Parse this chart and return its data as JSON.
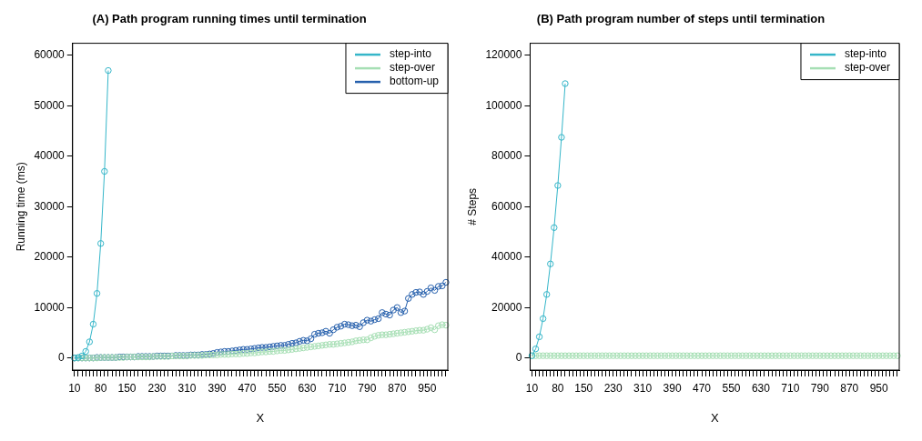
{
  "chart_data": [
    {
      "type": "line",
      "title": "(A) Path program running times until termination",
      "xlabel": "X",
      "ylabel": "Running time (ms)",
      "categories": [
        "10",
        null,
        null,
        null,
        null,
        null,
        null,
        "80",
        null,
        null,
        null,
        null,
        null,
        null,
        "150",
        null,
        null,
        null,
        null,
        null,
        null,
        null,
        "230",
        null,
        null,
        null,
        null,
        null,
        null,
        null,
        "310",
        null,
        null,
        null,
        null,
        null,
        null,
        null,
        "390",
        null,
        null,
        null,
        null,
        null,
        null,
        null,
        "470",
        null,
        null,
        null,
        null,
        null,
        null,
        null,
        "550",
        null,
        null,
        null,
        null,
        null,
        null,
        null,
        "630",
        null,
        null,
        null,
        null,
        null,
        null,
        null,
        "710",
        null,
        null,
        null,
        null,
        null,
        null,
        null,
        "790",
        null,
        null,
        null,
        null,
        null,
        null,
        null,
        "870",
        null,
        null,
        null,
        null,
        null,
        null,
        null,
        "950",
        null,
        null,
        null,
        null,
        null
      ],
      "ylim": [
        -2400,
        62400
      ],
      "yticks": [
        0,
        10000,
        20000,
        30000,
        40000,
        50000,
        60000
      ],
      "legend": "top right",
      "marker": "circle",
      "line_style": "solid",
      "series": [
        {
          "name": "step-into",
          "color": "#35b6c9",
          "values": [
            0,
            100,
            400,
            1300,
            3200,
            6700,
            12800,
            22700,
            37000,
            57000,
            null,
            null,
            null,
            null,
            null,
            null,
            null,
            null,
            null,
            null,
            null,
            null,
            null,
            null,
            null,
            null,
            null,
            null,
            null,
            null,
            null,
            null,
            null,
            null,
            null,
            null,
            null,
            null,
            null,
            null,
            null,
            null,
            null,
            null,
            null,
            null,
            null,
            null,
            null,
            null,
            null,
            null,
            null,
            null,
            null,
            null,
            null,
            null,
            null,
            null,
            null,
            null,
            null,
            null,
            null,
            null,
            null,
            null,
            null,
            null,
            null,
            null,
            null,
            null,
            null,
            null,
            null,
            null,
            null,
            null,
            null,
            null,
            null,
            null,
            null,
            null,
            null,
            null,
            null,
            null,
            null,
            null,
            null,
            null,
            null,
            null,
            null,
            null,
            null,
            null
          ]
        },
        {
          "name": "step-over",
          "color": "#a6dfb4",
          "values": [
            0,
            0,
            0,
            0,
            0,
            0,
            0,
            100,
            100,
            100,
            100,
            100,
            100,
            100,
            200,
            200,
            200,
            200,
            200,
            200,
            200,
            300,
            300,
            300,
            300,
            300,
            400,
            400,
            400,
            400,
            400,
            500,
            500,
            500,
            500,
            600,
            600,
            600,
            600,
            700,
            700,
            700,
            800,
            800,
            800,
            900,
            900,
            1000,
            1000,
            1100,
            1200,
            1200,
            1300,
            1300,
            1400,
            1500,
            1500,
            1600,
            1700,
            1800,
            1900,
            2000,
            2100,
            2200,
            2300,
            2400,
            2500,
            2600,
            2700,
            2700,
            2800,
            2900,
            3000,
            3100,
            3200,
            3400,
            3500,
            3600,
            3600,
            4000,
            4300,
            4500,
            4600,
            4600,
            4700,
            4800,
            4900,
            5000,
            5100,
            5200,
            5300,
            5400,
            5500,
            5500,
            5700,
            6000,
            5600,
            6400,
            6600,
            6500
          ]
        },
        {
          "name": "bottom-up",
          "color": "#2660ad",
          "values": [
            0,
            0,
            0,
            0,
            0,
            0,
            100,
            100,
            100,
            100,
            100,
            100,
            200,
            200,
            200,
            200,
            200,
            300,
            300,
            300,
            300,
            300,
            400,
            400,
            400,
            400,
            400,
            500,
            500,
            500,
            500,
            600,
            600,
            600,
            700,
            700,
            800,
            900,
            1100,
            1200,
            1300,
            1300,
            1400,
            1500,
            1600,
            1700,
            1700,
            1800,
            1900,
            2000,
            2100,
            2100,
            2200,
            2300,
            2400,
            2500,
            2500,
            2700,
            2900,
            3000,
            3300,
            3500,
            3400,
            3800,
            4700,
            4900,
            5000,
            5300,
            4900,
            5600,
            6100,
            6300,
            6700,
            6600,
            6400,
            6500,
            6200,
            7000,
            7500,
            7300,
            7600,
            7800,
            9000,
            8700,
            8500,
            9500,
            10000,
            9000,
            9300,
            11800,
            12600,
            13000,
            13100,
            12600,
            13200,
            13900,
            13400,
            14200,
            14300,
            15000
          ]
        }
      ]
    },
    {
      "type": "line",
      "title": "(B) Path program number of steps until termination",
      "xlabel": "X",
      "ylabel": "# Steps",
      "categories": [
        "10",
        null,
        null,
        null,
        null,
        null,
        null,
        "80",
        null,
        null,
        null,
        null,
        null,
        null,
        "150",
        null,
        null,
        null,
        null,
        null,
        null,
        null,
        "230",
        null,
        null,
        null,
        null,
        null,
        null,
        null,
        "310",
        null,
        null,
        null,
        null,
        null,
        null,
        null,
        "390",
        null,
        null,
        null,
        null,
        null,
        null,
        null,
        "470",
        null,
        null,
        null,
        null,
        null,
        null,
        null,
        "550",
        null,
        null,
        null,
        null,
        null,
        null,
        null,
        "630",
        null,
        null,
        null,
        null,
        null,
        null,
        null,
        "710",
        null,
        null,
        null,
        null,
        null,
        null,
        null,
        "790",
        null,
        null,
        null,
        null,
        null,
        null,
        null,
        "870",
        null,
        null,
        null,
        null,
        null,
        null,
        null,
        "950",
        null,
        null,
        null,
        null,
        null
      ],
      "ylim": [
        -4800,
        124800
      ],
      "yticks": [
        0,
        20000,
        40000,
        60000,
        80000,
        100000,
        120000
      ],
      "legend": "top right",
      "marker": "circle",
      "line_style": "solid",
      "series": [
        {
          "name": "step-into",
          "color": "#35b6c9",
          "values": [
            900,
            3600,
            8400,
            15600,
            25200,
            37300,
            51700,
            68400,
            87500,
            108800,
            null,
            null,
            null,
            null,
            null,
            null,
            null,
            null,
            null,
            null,
            null,
            null,
            null,
            null,
            null,
            null,
            null,
            null,
            null,
            null,
            null,
            null,
            null,
            null,
            null,
            null,
            null,
            null,
            null,
            null,
            null,
            null,
            null,
            null,
            null,
            null,
            null,
            null,
            null,
            null,
            null,
            null,
            null,
            null,
            null,
            null,
            null,
            null,
            null,
            null,
            null,
            null,
            null,
            null,
            null,
            null,
            null,
            null,
            null,
            null,
            null,
            null,
            null,
            null,
            null,
            null,
            null,
            null,
            null,
            null,
            null,
            null,
            null,
            null,
            null,
            null,
            null,
            null,
            null,
            null,
            null,
            null,
            null,
            null,
            null,
            null,
            null,
            null,
            null,
            null
          ]
        },
        {
          "name": "step-over",
          "color": "#a6dfb4",
          "values": [
            900,
            900,
            900,
            900,
            900,
            900,
            900,
            900,
            900,
            900,
            900,
            900,
            900,
            900,
            900,
            900,
            900,
            900,
            900,
            900,
            900,
            900,
            900,
            900,
            900,
            900,
            900,
            900,
            900,
            900,
            900,
            900,
            900,
            900,
            900,
            900,
            900,
            900,
            900,
            900,
            900,
            900,
            900,
            900,
            900,
            900,
            900,
            900,
            900,
            900,
            900,
            900,
            900,
            900,
            900,
            900,
            900,
            900,
            900,
            900,
            900,
            900,
            900,
            900,
            900,
            900,
            900,
            900,
            900,
            900,
            900,
            900,
            900,
            900,
            900,
            900,
            900,
            900,
            900,
            900,
            900,
            900,
            900,
            900,
            900,
            900,
            900,
            900,
            900,
            900,
            900,
            900,
            900,
            900,
            900,
            900,
            900,
            900,
            900,
            900
          ]
        }
      ]
    }
  ]
}
